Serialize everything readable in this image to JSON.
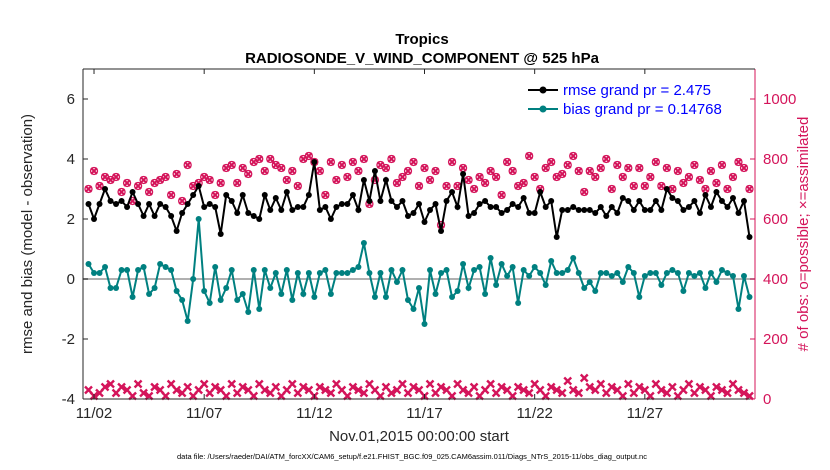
{
  "chart_data": {
    "type": "line",
    "title": "Tropics",
    "subtitle": "RADIOSONDE_V_WIND_COMPONENT @ 525 hPa",
    "xlabel": "Nov.01,2015 00:00:00 start",
    "ylabel": "rmse and bias (model - observation)",
    "y2label": "# of obs: o=possible; ×=assimilated",
    "xlim": [
      0.5,
      31.0
    ],
    "ylim": [
      -4,
      7
    ],
    "y2lim": [
      0,
      1100
    ],
    "x_ticks": [
      1,
      6,
      11,
      16,
      21,
      26
    ],
    "x_tick_labels": [
      "11/02",
      "11/07",
      "11/12",
      "11/17",
      "11/22",
      "11/27"
    ],
    "y_ticks": [
      -4,
      -2,
      0,
      2,
      4,
      6
    ],
    "y_tick_labels": [
      "-4",
      "-2",
      "0",
      "2",
      "4",
      "6"
    ],
    "y2_ticks": [
      0,
      200,
      400,
      600,
      800,
      1000
    ],
    "y2_tick_labels": [
      "0",
      "200",
      "400",
      "600",
      "800",
      "1000"
    ],
    "zero_line": 0,
    "x": [
      0.75,
      1.0,
      1.25,
      1.5,
      1.75,
      2.0,
      2.25,
      2.5,
      2.75,
      3.0,
      3.25,
      3.5,
      3.75,
      4.0,
      4.25,
      4.5,
      4.75,
      5.0,
      5.25,
      5.5,
      5.75,
      6.0,
      6.25,
      6.5,
      6.75,
      7.0,
      7.25,
      7.5,
      7.75,
      8.0,
      8.25,
      8.5,
      8.75,
      9.0,
      9.25,
      9.5,
      9.75,
      10.0,
      10.25,
      10.5,
      10.75,
      11.0,
      11.25,
      11.5,
      11.75,
      12.0,
      12.25,
      12.5,
      12.75,
      13.0,
      13.25,
      13.5,
      13.75,
      14.0,
      14.25,
      14.5,
      14.75,
      15.0,
      15.25,
      15.5,
      15.75,
      16.0,
      16.25,
      16.5,
      16.75,
      17.0,
      17.25,
      17.5,
      17.75,
      18.0,
      18.25,
      18.5,
      18.75,
      19.0,
      19.25,
      19.5,
      19.75,
      20.0,
      20.25,
      20.5,
      20.75,
      21.0,
      21.25,
      21.5,
      21.75,
      22.0,
      22.25,
      22.5,
      22.75,
      23.0,
      23.25,
      23.5,
      23.75,
      24.0,
      24.25,
      24.5,
      24.75,
      25.0,
      25.25,
      25.5,
      25.75,
      26.0,
      26.25,
      26.5,
      26.75,
      27.0,
      27.25,
      27.5,
      27.75,
      28.0,
      28.25,
      28.5,
      28.75,
      29.0,
      29.25,
      29.5,
      29.75,
      30.0,
      30.25,
      30.5,
      30.75
    ],
    "series": [
      {
        "name": "rmse grand pr = 2.475",
        "color": "#000000",
        "axis": "left",
        "values": [
          2.5,
          2.0,
          2.5,
          3.0,
          2.6,
          2.5,
          2.6,
          2.4,
          2.9,
          2.5,
          2.1,
          2.5,
          2.1,
          2.5,
          2.4,
          2.1,
          1.6,
          2.2,
          2.5,
          2.8,
          3.1,
          2.4,
          2.5,
          2.4,
          1.5,
          2.8,
          2.6,
          2.2,
          2.8,
          2.2,
          2.1,
          2.0,
          2.8,
          2.3,
          2.7,
          2.3,
          2.9,
          2.3,
          2.4,
          2.4,
          2.8,
          3.9,
          2.3,
          2.4,
          2.0,
          2.4,
          2.5,
          2.5,
          2.8,
          2.3,
          3.3,
          2.6,
          3.6,
          2.6,
          3.3,
          2.6,
          2.4,
          2.6,
          2.1,
          2.2,
          2.5,
          1.9,
          2.3,
          2.5,
          1.6,
          2.6,
          2.9,
          2.4,
          3.5,
          2.1,
          2.2,
          2.5,
          2.6,
          2.4,
          2.4,
          2.2,
          2.3,
          2.5,
          2.4,
          2.7,
          2.2,
          2.2,
          2.9,
          2.4,
          2.6,
          1.4,
          2.3,
          2.3,
          2.4,
          2.3,
          2.3,
          2.3,
          2.2,
          2.4,
          2.1,
          2.4,
          2.2,
          2.7,
          2.6,
          2.3,
          2.6,
          2.3,
          2.3,
          2.6,
          2.3,
          3.0,
          2.7,
          2.6,
          2.3,
          2.4,
          2.6,
          2.2,
          2.8,
          2.4,
          2.9,
          2.6,
          2.4,
          2.7,
          2.2,
          2.6,
          1.4
        ]
      },
      {
        "name": "bias grand pr = 0.14768",
        "color": "#008080",
        "axis": "left",
        "values": [
          0.5,
          0.2,
          0.2,
          0.4,
          -0.3,
          -0.3,
          0.3,
          0.3,
          -0.6,
          0.3,
          0.4,
          -0.5,
          -0.3,
          0.5,
          0.4,
          0.3,
          -0.4,
          -0.7,
          -1.4,
          0.0,
          2.0,
          -0.4,
          -0.8,
          0.4,
          -0.7,
          -0.3,
          0.3,
          -0.7,
          -0.5,
          -1.1,
          0.3,
          -1.0,
          0.3,
          -0.3,
          0.2,
          -0.5,
          0.3,
          -0.7,
          0.2,
          -0.5,
          0.2,
          -0.6,
          0.2,
          0.3,
          -0.5,
          0.2,
          0.2,
          0.2,
          0.3,
          0.4,
          1.2,
          0.2,
          -0.6,
          0.2,
          -0.6,
          0.3,
          -0.1,
          0.3,
          -0.7,
          -1.0,
          -0.3,
          -1.5,
          0.3,
          -0.5,
          0.2,
          0.3,
          -0.6,
          -0.4,
          0.5,
          -0.3,
          0.3,
          0.4,
          -0.5,
          0.7,
          -0.2,
          0.5,
          0.1,
          0.4,
          -0.8,
          0.3,
          0.1,
          0.4,
          0.2,
          -0.2,
          0.6,
          0.2,
          0.2,
          0.3,
          0.7,
          0.2,
          -0.3,
          -0.1,
          -0.4,
          0.2,
          0.2,
          0.1,
          0.2,
          -0.1,
          0.4,
          0.2,
          -0.6,
          0.1,
          0.2,
          0.2,
          -0.2,
          0.2,
          0.3,
          0.2,
          -0.4,
          0.2,
          0.1,
          0.2,
          -0.3,
          0.2,
          -0.1,
          0.3,
          0.2,
          0.1,
          -1.0,
          0.1,
          -0.6
        ]
      }
    ],
    "obs_possible": {
      "name": "possible",
      "marker": "o",
      "color": "#d4145a",
      "axis": "right",
      "values": [
        700,
        760,
        710,
        740,
        730,
        740,
        690,
        720,
        660,
        710,
        730,
        690,
        720,
        730,
        740,
        680,
        750,
        660,
        780,
        710,
        720,
        740,
        730,
        680,
        720,
        770,
        780,
        720,
        770,
        750,
        790,
        800,
        760,
        800,
        780,
        770,
        730,
        760,
        710,
        800,
        810,
        790,
        760,
        680,
        790,
        730,
        780,
        740,
        790,
        760,
        800,
        650,
        730,
        780,
        770,
        800,
        720,
        740,
        760,
        790,
        710,
        770,
        730,
        760,
        580,
        710,
        790,
        710,
        770,
        730,
        700,
        740,
        720,
        760,
        740,
        680,
        790,
        760,
        710,
        720,
        810,
        740,
        700,
        770,
        790,
        740,
        750,
        780,
        810,
        760,
        690,
        760,
        740,
        770,
        800,
        700,
        780,
        740,
        770,
        710,
        770,
        710,
        740,
        790,
        710,
        770,
        700,
        760,
        720,
        740,
        780,
        730,
        700,
        760,
        720,
        780,
        700,
        740,
        790,
        770,
        700
      ]
    },
    "obs_assimilated": {
      "name": "assimilated",
      "marker": "x",
      "color": "#d4145a",
      "axis": "right",
      "values": [
        30,
        10,
        20,
        40,
        50,
        20,
        40,
        30,
        10,
        50,
        20,
        10,
        40,
        30,
        10,
        50,
        30,
        20,
        40,
        10,
        30,
        50,
        20,
        40,
        30,
        10,
        50,
        20,
        40,
        30,
        10,
        50,
        30,
        20,
        40,
        10,
        30,
        50,
        20,
        40,
        30,
        10,
        40,
        30,
        20,
        50,
        30,
        10,
        40,
        30,
        20,
        50,
        30,
        10,
        40,
        20,
        30,
        50,
        20,
        40,
        30,
        10,
        50,
        20,
        40,
        30,
        10,
        50,
        30,
        20,
        40,
        10,
        30,
        50,
        20,
        40,
        30,
        10,
        40,
        30,
        20,
        50,
        30,
        10,
        40,
        30,
        20,
        60,
        30,
        20,
        70,
        40,
        30,
        50,
        20,
        40,
        30,
        10,
        50,
        20,
        40,
        30,
        10,
        50,
        30,
        20,
        40,
        10,
        30,
        50,
        20,
        40,
        30,
        10,
        40,
        30,
        20,
        50,
        30,
        20,
        10
      ]
    },
    "legend": [
      "rmse grand pr = 2.475",
      "bias grand pr = 0.14768"
    ],
    "legend_position": "top-right",
    "grid": false
  },
  "footnote": "data file: /Users/raeder/DAI/ATM_forcXX/CAM6_setup/f.e21.FHIST_BGC.f09_025.CAM6assim.011/Diags_NTrS_2015-11/obs_diag_output.nc"
}
